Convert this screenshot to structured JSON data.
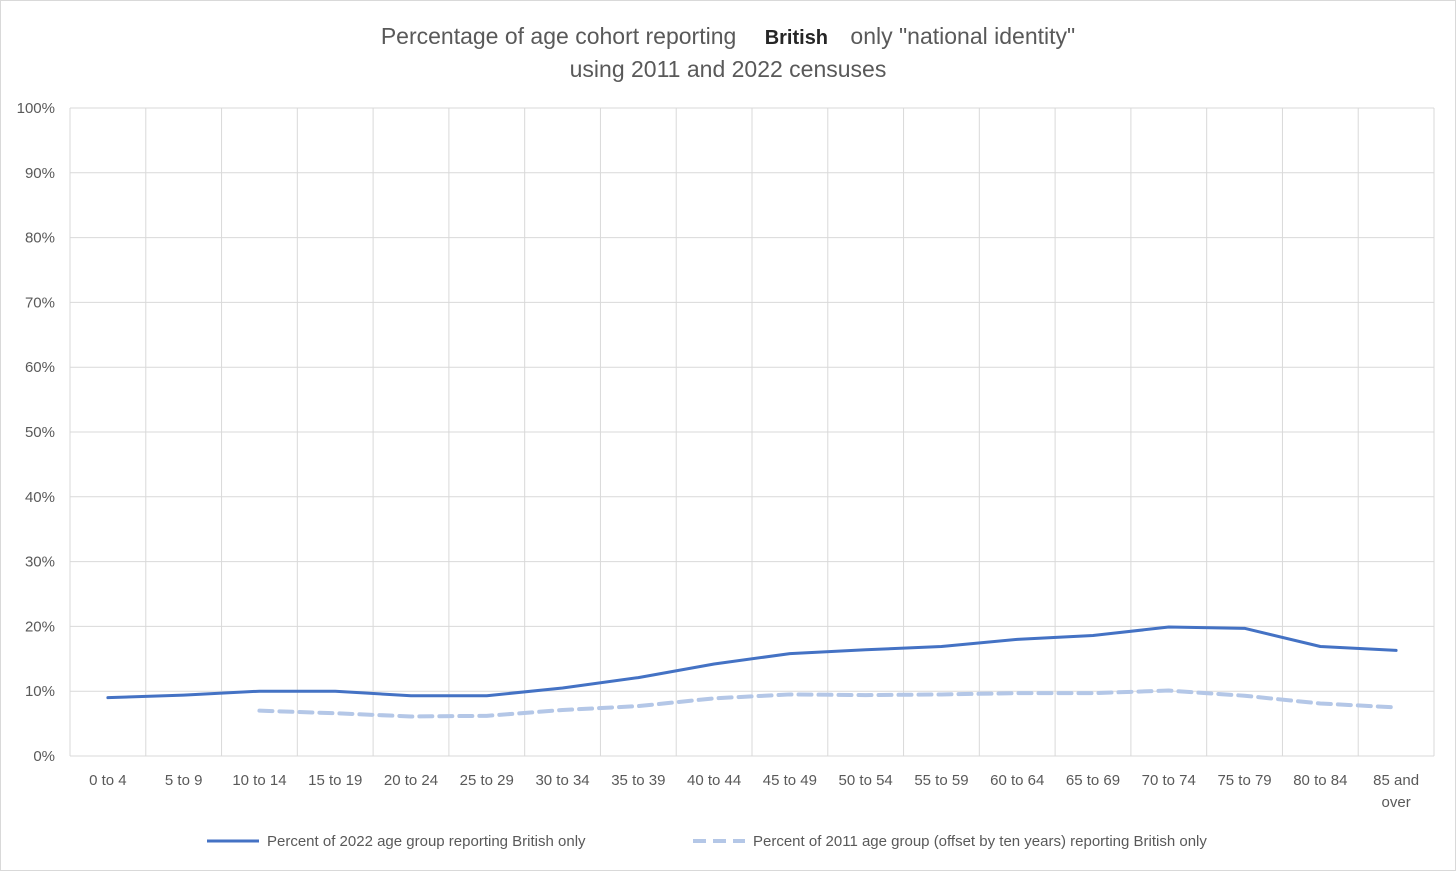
{
  "chart_data": {
    "type": "line",
    "title_parts": [
      "Percentage of age cohort reporting",
      "British",
      "only \"national identity\""
    ],
    "subtitle": "using 2011 and 2022 censuses",
    "categories": [
      "0 to  4",
      "5 to 9",
      "10 to 14",
      "15 to 19",
      "20 to 24",
      "25 to 29",
      "30 to 34",
      "35 to 39",
      "40 to 44",
      "45 to 49",
      "50 to 54",
      "55 to 59",
      "60 to 64",
      "65 to 69",
      "70 to 74",
      "75 to 79",
      "80 to 84",
      "85 and over"
    ],
    "category_labels": [
      [
        "0 to  4"
      ],
      [
        "5 to 9"
      ],
      [
        "10 to 14"
      ],
      [
        "15 to 19"
      ],
      [
        "20 to 24"
      ],
      [
        "25 to 29"
      ],
      [
        "30 to 34"
      ],
      [
        "35 to 39"
      ],
      [
        "40 to 44"
      ],
      [
        "45 to 49"
      ],
      [
        "50 to 54"
      ],
      [
        "55 to 59"
      ],
      [
        "60 to 64"
      ],
      [
        "65 to 69"
      ],
      [
        "70 to 74"
      ],
      [
        "75 to 79"
      ],
      [
        "80 to 84"
      ],
      [
        "85 and",
        "over"
      ]
    ],
    "ylim": [
      0,
      100
    ],
    "y_ticks": [
      "0%",
      "10%",
      "20%",
      "30%",
      "40%",
      "50%",
      "60%",
      "70%",
      "80%",
      "90%",
      "100%"
    ],
    "grid": true,
    "legend_position": "bottom",
    "series": [
      {
        "name": "Percent of 2022 age group reporting British only",
        "style": "solid",
        "color": "#4472c4",
        "values": [
          9.0,
          9.4,
          10.0,
          10.0,
          9.3,
          9.3,
          10.5,
          12.1,
          14.2,
          15.8,
          16.4,
          16.9,
          18.0,
          18.6,
          19.9,
          19.7,
          16.9,
          16.3
        ]
      },
      {
        "name": "Percent of 2011 age group (offset by ten years) reporting British only",
        "style": "dashed",
        "color": "#b4c7e7",
        "values": [
          null,
          null,
          7.0,
          6.6,
          6.1,
          6.2,
          7.1,
          7.7,
          8.9,
          9.5,
          9.4,
          9.5,
          9.7,
          9.7,
          10.1,
          9.3,
          8.1,
          7.5
        ]
      }
    ]
  }
}
